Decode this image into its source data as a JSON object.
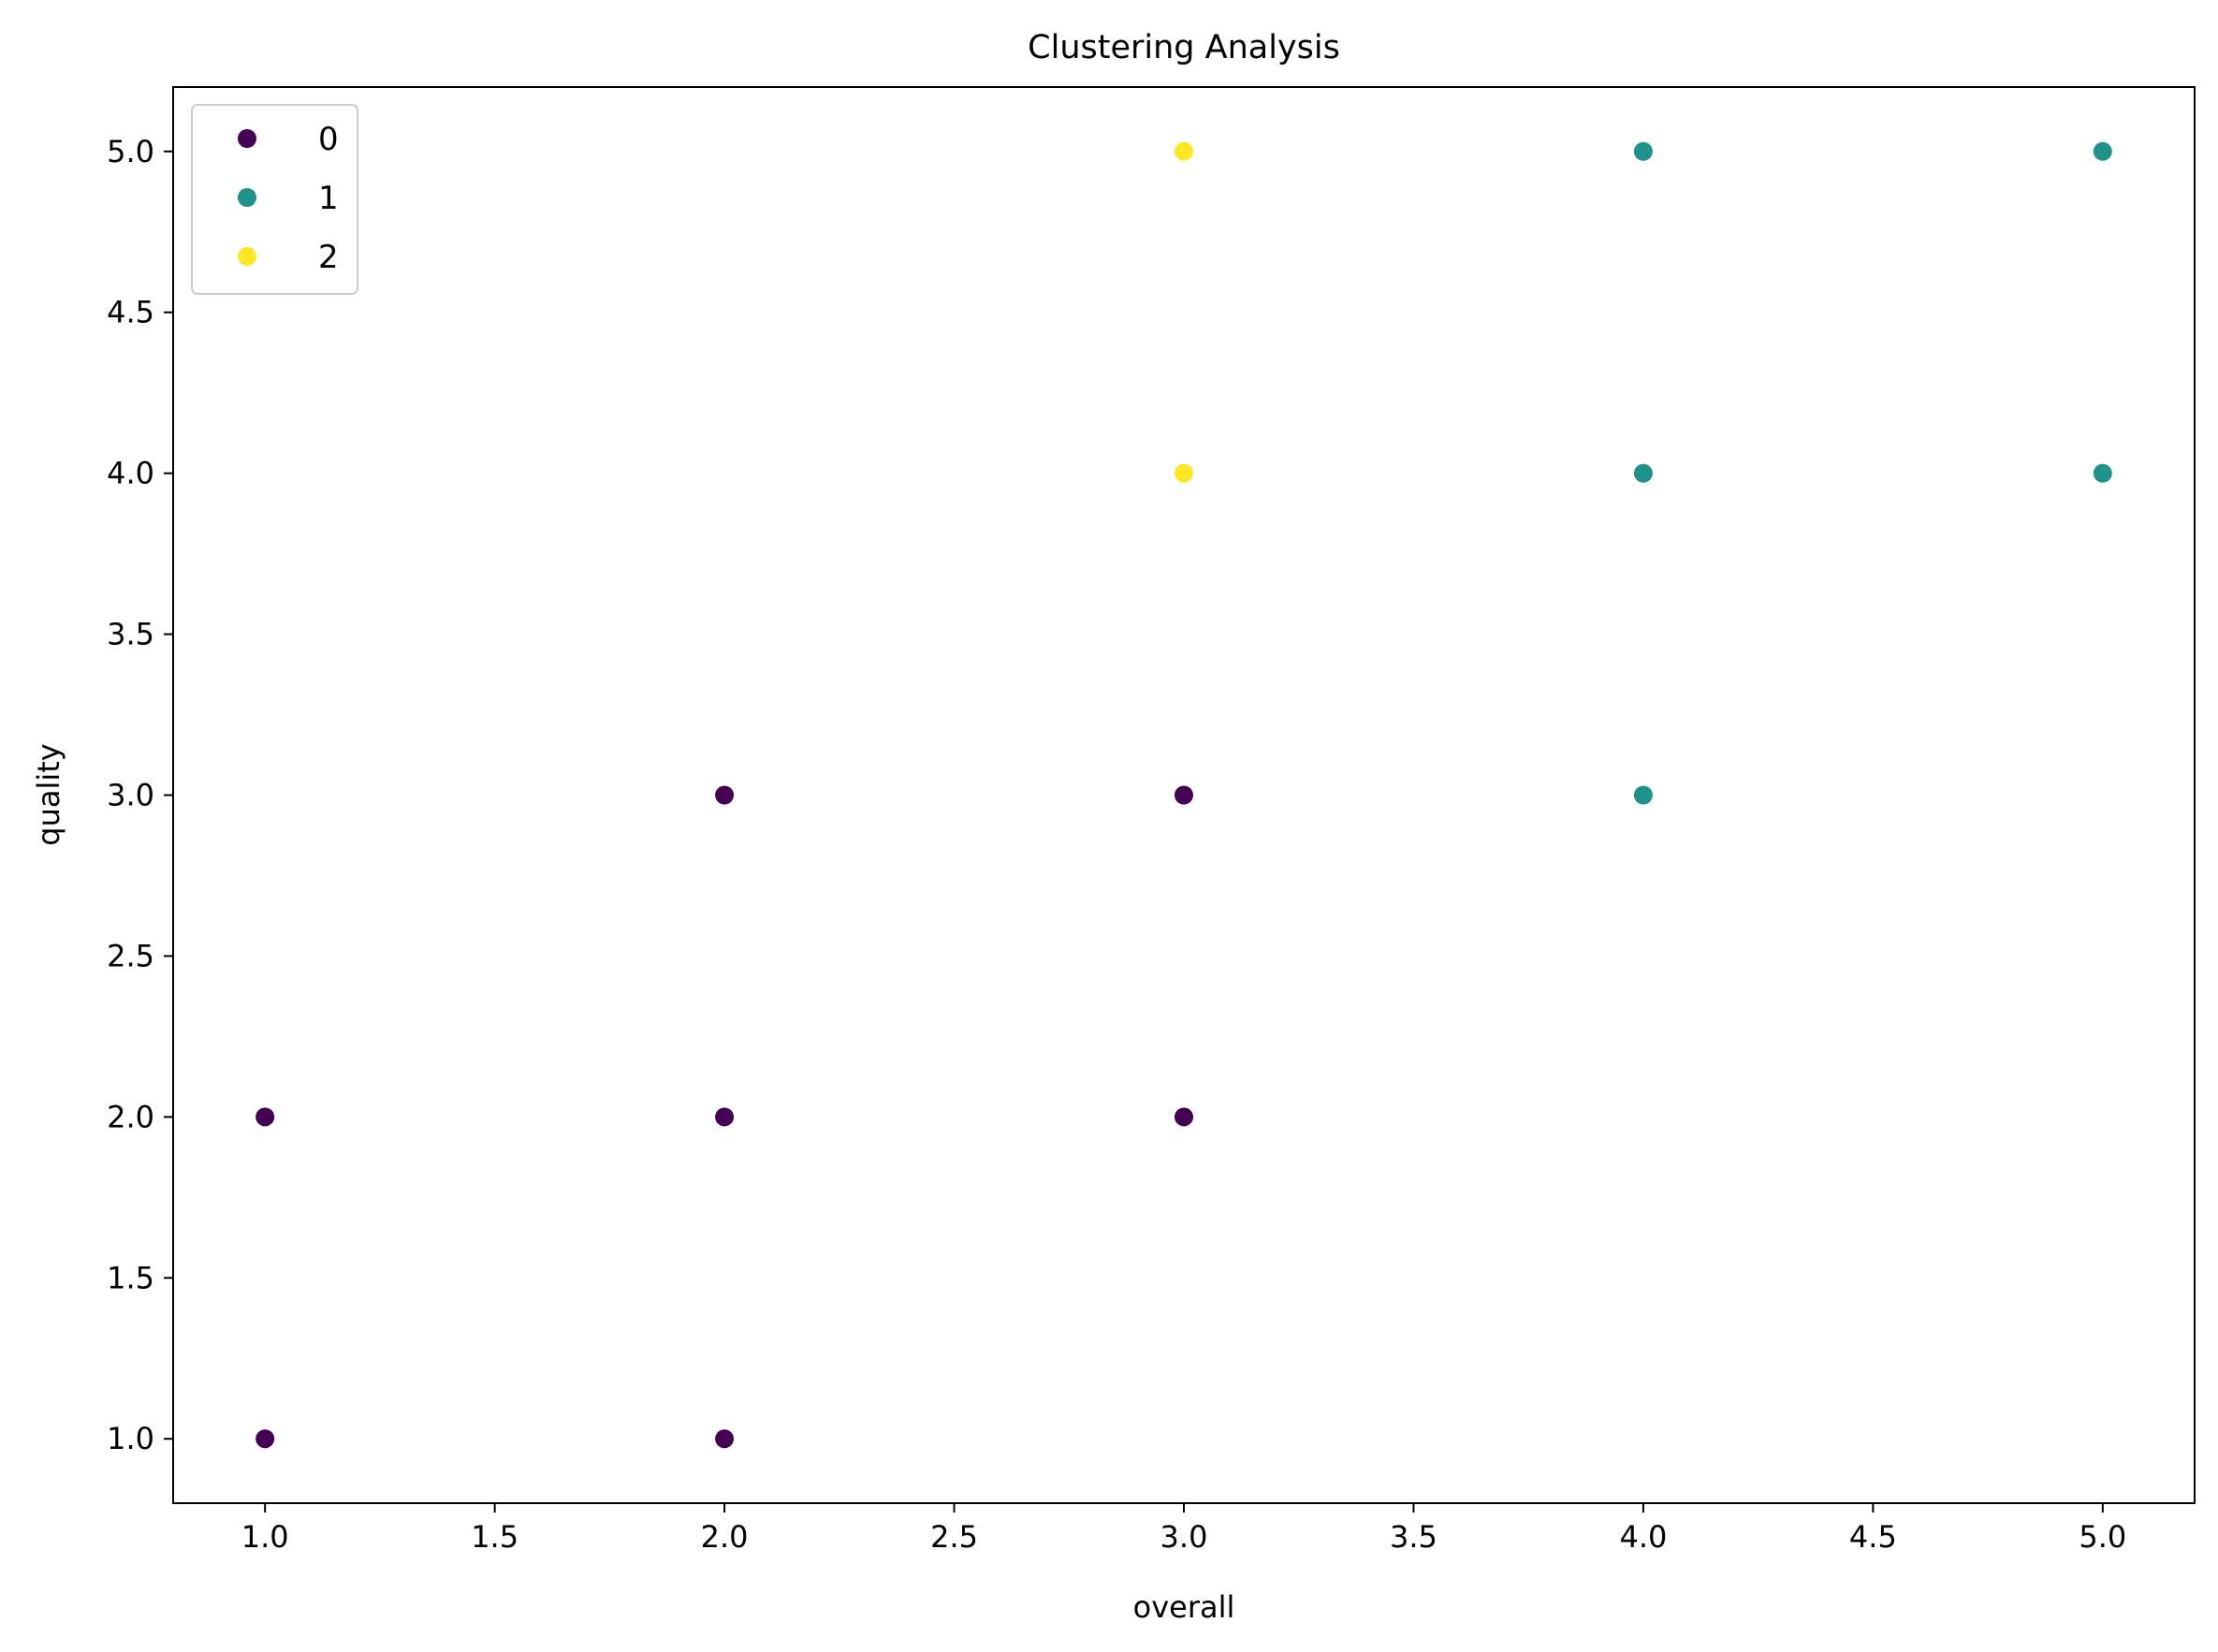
{
  "chart_data": {
    "type": "scatter",
    "title": "Clustering Analysis",
    "xlabel": "overall",
    "ylabel": "quality",
    "xlim": [
      0.8,
      5.2
    ],
    "ylim": [
      0.8,
      5.2
    ],
    "xticks": [
      "1.0",
      "1.5",
      "2.0",
      "2.5",
      "3.0",
      "3.5",
      "4.0",
      "4.5",
      "5.0"
    ],
    "yticks": [
      "1.0",
      "1.5",
      "2.0",
      "2.5",
      "3.0",
      "3.5",
      "4.0",
      "4.5",
      "5.0"
    ],
    "grid": false,
    "legend_position": "top-left",
    "series": [
      {
        "name": "0",
        "color": "#440154",
        "points": [
          [
            1,
            1
          ],
          [
            1,
            2
          ],
          [
            2,
            1
          ],
          [
            2,
            2
          ],
          [
            2,
            3
          ],
          [
            3,
            2
          ],
          [
            3,
            3
          ]
        ]
      },
      {
        "name": "1",
        "color": "#21918c",
        "points": [
          [
            4,
            3
          ],
          [
            4,
            4
          ],
          [
            4,
            5
          ],
          [
            5,
            4
          ],
          [
            5,
            5
          ]
        ]
      },
      {
        "name": "2",
        "color": "#fde725",
        "points": [
          [
            3,
            4
          ],
          [
            3,
            5
          ]
        ]
      }
    ]
  }
}
